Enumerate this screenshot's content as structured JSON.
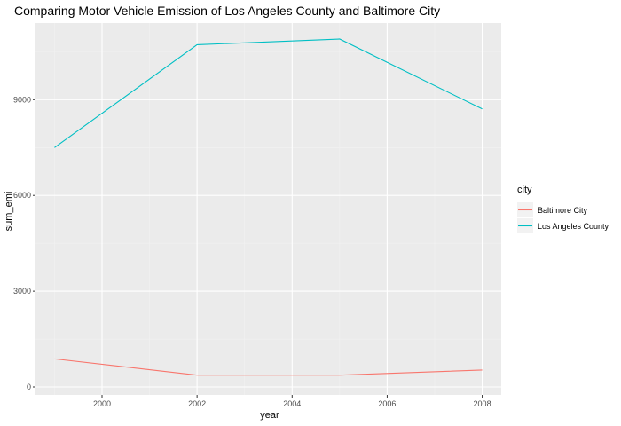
{
  "chart_data": {
    "type": "line",
    "title": "Comparing Motor Vehicle Emission of Los Angeles County and Baltimore City",
    "xlabel": "year",
    "ylabel": "sum_emi",
    "xlim": [
      1998.6,
      2008.4
    ],
    "ylim": [
      -250,
      11400
    ],
    "x_ticks": [
      2000,
      2002,
      2004,
      2006,
      2008
    ],
    "x_minor_ticks": [
      1999,
      2001,
      2003,
      2005,
      2007
    ],
    "y_ticks": [
      0,
      3000,
      6000,
      9000
    ],
    "y_minor_ticks": [
      1500,
      4500,
      7500,
      10500
    ],
    "x_tick_labels": [
      "2000",
      "2002",
      "2004",
      "2006",
      "2008"
    ],
    "y_tick_labels": [
      "0",
      "3000",
      "6000",
      "9000"
    ],
    "grid": true,
    "legend_position": "right",
    "legend_title": "city",
    "series": [
      {
        "name": "Baltimore City",
        "color": "#F8766D",
        "x": [
          1999,
          2002,
          2005,
          2008
        ],
        "y": [
          880,
          370,
          370,
          530
        ]
      },
      {
        "name": "Los Angeles County",
        "color": "#00BFC4",
        "x": [
          1999,
          2002,
          2005,
          2008
        ],
        "y": [
          7500,
          10720,
          10900,
          8710
        ]
      }
    ]
  },
  "colors": {
    "panel_background": "#EBEBEB",
    "grid_major": "#FFFFFF",
    "grid_minor": "#F2F2F2",
    "tick_text": "#4D4D4D"
  }
}
